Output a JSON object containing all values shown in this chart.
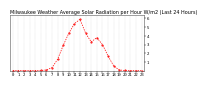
{
  "title": "Milwaukee Weather Average Solar Radiation per Hour W/m2 (Last 24 Hours)",
  "hours": [
    0,
    1,
    2,
    3,
    4,
    5,
    6,
    7,
    8,
    9,
    10,
    11,
    12,
    13,
    14,
    15,
    16,
    17,
    18,
    19,
    20,
    21,
    22,
    23
  ],
  "values": [
    0,
    0,
    0,
    0,
    0,
    2,
    8,
    35,
    130,
    290,
    430,
    540,
    590,
    430,
    330,
    380,
    300,
    170,
    55,
    8,
    2,
    0,
    0,
    0
  ],
  "line_color": "#ff0000",
  "bg_color": "#ffffff",
  "grid_color": "#aaaaaa",
  "ylim": [
    0,
    640
  ],
  "ytick_values": [
    100,
    200,
    300,
    400,
    500,
    600
  ],
  "ytick_labels": [
    "1",
    "2",
    "3",
    "4",
    "5",
    "6"
  ],
  "xlabel_fontsize": 2.8,
  "ylabel_fontsize": 2.8,
  "title_fontsize": 3.5
}
